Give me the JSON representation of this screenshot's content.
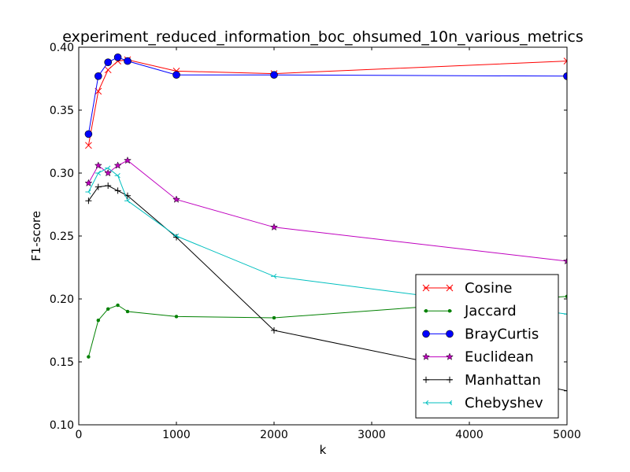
{
  "chart_data": {
    "type": "line",
    "title": "experiment_reduced_information_boc_ohsumed_10n_various_metrics",
    "xlabel": "k",
    "ylabel": "F1-score",
    "xlim": [
      0,
      5000
    ],
    "ylim": [
      0.1,
      0.4
    ],
    "xticks": [
      0,
      1000,
      2000,
      3000,
      4000,
      5000
    ],
    "yticks": [
      0.1,
      0.15,
      0.2,
      0.25,
      0.3,
      0.35,
      0.4
    ],
    "xtick_labels": [
      "0",
      "1000",
      "2000",
      "3000",
      "4000",
      "5000"
    ],
    "ytick_labels": [
      "0.10",
      "0.15",
      "0.20",
      "0.25",
      "0.30",
      "0.35",
      "0.40"
    ],
    "grid": false,
    "legend_position": "lower-right",
    "x": [
      100,
      200,
      300,
      400,
      500,
      1000,
      2000,
      5000
    ],
    "series": [
      {
        "name": "Cosine",
        "color": "#ff0000",
        "marker": "x",
        "values": [
          0.322,
          0.365,
          0.382,
          0.389,
          0.39,
          0.381,
          0.379,
          0.389
        ]
      },
      {
        "name": "Jaccard",
        "color": "#008000",
        "marker": "point",
        "values": [
          0.154,
          0.183,
          0.192,
          0.195,
          0.19,
          0.186,
          0.185,
          0.202
        ]
      },
      {
        "name": "BrayCurtis",
        "color": "#0000ff",
        "marker": "circle",
        "values": [
          0.331,
          0.377,
          0.388,
          0.392,
          0.389,
          0.378,
          0.378,
          0.377
        ]
      },
      {
        "name": "Euclidean",
        "color": "#bf00bf",
        "marker": "star",
        "values": [
          0.292,
          0.306,
          0.3,
          0.306,
          0.31,
          0.279,
          0.257,
          0.23
        ]
      },
      {
        "name": "Manhattan",
        "color": "#000000",
        "marker": "plus",
        "values": [
          0.278,
          0.289,
          0.29,
          0.286,
          0.282,
          0.249,
          0.175,
          0.127
        ]
      },
      {
        "name": "Chebyshev",
        "color": "#00bfbf",
        "marker": "tri_left",
        "values": [
          0.285,
          0.3,
          0.304,
          0.298,
          0.278,
          0.25,
          0.218,
          0.188
        ]
      }
    ]
  }
}
